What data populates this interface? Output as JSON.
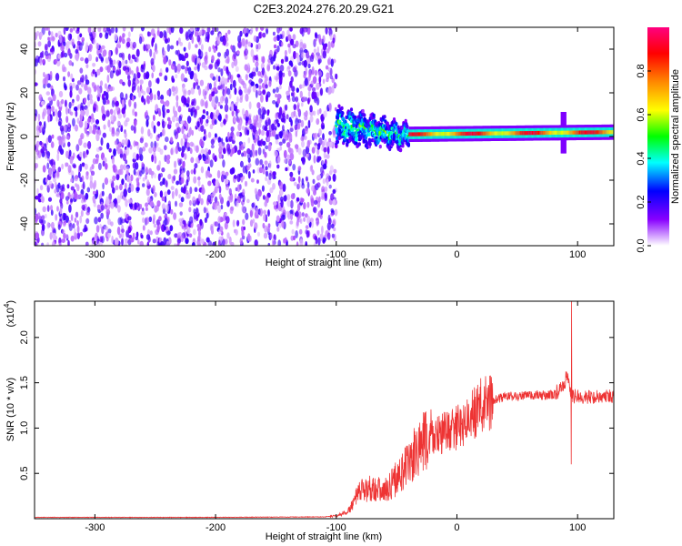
{
  "chart_data": [
    {
      "type": "heatmap",
      "title": "C2E3.2024.276.20.29.G21",
      "xlabel": "Height of straight line (km)",
      "ylabel": "Frequency (Hz)",
      "xlim": [
        -350,
        130
      ],
      "ylim": [
        -50,
        50
      ],
      "xticks": [
        "-300",
        "-200",
        "-100",
        "0",
        "100"
      ],
      "yticks": [
        "40",
        "20",
        "0",
        "-20",
        "-40"
      ],
      "colorbar": {
        "label": "Normalized spectral amplitude",
        "range": [
          0.0,
          1.0
        ],
        "ticks": [
          "0.0",
          "0.2",
          "0.4",
          "0.6",
          "0.8"
        ],
        "colors": [
          "#ffffff",
          "#8800ff",
          "#0000ff",
          "#00ffff",
          "#00ff00",
          "#ffff00",
          "#ff8800",
          "#ff0000",
          "#ff0080"
        ]
      },
      "regions": [
        {
          "x_range": [
            -350,
            -100
          ],
          "description_level": "noise",
          "amplitude": [
            0.0,
            0.25
          ]
        },
        {
          "x_range": [
            -100,
            -40
          ],
          "center_freq": [
            5,
            0
          ],
          "bandwidth": 8,
          "amplitude": [
            0.3,
            0.6
          ]
        },
        {
          "x_range": [
            -40,
            130
          ],
          "center_freq": [
            1,
            2
          ],
          "bandwidth": 3,
          "amplitude": [
            0.6,
            0.95
          ]
        }
      ]
    },
    {
      "type": "line",
      "xlabel": "Height of straight line (km)",
      "ylabel": "SNR (10 * v/v)",
      "yscale_label": "(x10",
      "yscale_exp": "4",
      "xlim": [
        -350,
        130
      ],
      "ylim": [
        0,
        24000
      ],
      "xticks": [
        "-300",
        "-200",
        "-100",
        "0",
        "100"
      ],
      "yticks": [
        "0.5",
        "1.0",
        "1.5",
        "2.0"
      ],
      "color": "#ee3333",
      "series": [
        {
          "x": [
            -350,
            -200,
            -110,
            -100,
            -90,
            -85,
            -80,
            -70,
            -60,
            -50,
            -40,
            -30,
            -20,
            -10,
            0,
            10,
            20,
            30,
            40,
            50,
            60,
            70,
            80,
            88,
            92,
            95,
            100,
            110,
            120,
            130
          ],
          "y": [
            150,
            150,
            200,
            300,
            800,
            2000,
            3000,
            3500,
            3000,
            4500,
            6000,
            8000,
            9000,
            9500,
            10000,
            11000,
            12500,
            13000,
            13500,
            13500,
            13600,
            13600,
            13700,
            14500,
            16000,
            13500,
            13500,
            13400,
            13500,
            13500
          ]
        }
      ],
      "annotations": {
        "spike": {
          "x": 95,
          "y_max": 24000,
          "y_min": 6000
        }
      }
    }
  ]
}
